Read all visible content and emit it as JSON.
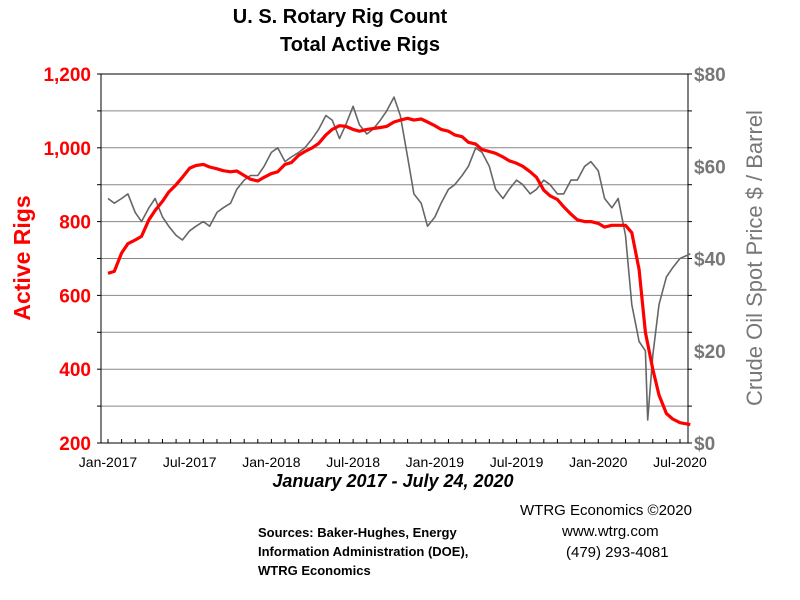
{
  "chart_data": {
    "type": "line",
    "title_line1": "U. S. Rotary Rig Count",
    "title_line2": "Total Active Rigs",
    "subtitle": "January 2017 - July 24, 2020",
    "ylabel_left": "Active Rigs",
    "ylabel_right": "Crude Oil Spot Price $ / Barrel",
    "ylim_left": [
      200,
      1200
    ],
    "ylim_right": [
      0,
      80
    ],
    "yticks_left": [
      "200",
      "400",
      "600",
      "800",
      "1,000",
      "1,200"
    ],
    "yticks_right": [
      "$0",
      "$20",
      "$40",
      "$60",
      "$80"
    ],
    "xticks": [
      "Jan-2017",
      "Jul-2017",
      "Jan-2018",
      "Jul-2018",
      "Jan-2019",
      "Jul-2019",
      "Jan-2020",
      "Jul-2020"
    ],
    "x_range": [
      "2017-01",
      "2020-07"
    ],
    "grid": true,
    "colors": {
      "rigs": "#ff0000",
      "oil": "#666666"
    },
    "series": [
      {
        "name": "Active Rigs",
        "axis": "left",
        "points": [
          [
            "2017-01",
            660
          ],
          [
            "2017-01-15",
            665
          ],
          [
            "2017-02",
            715
          ],
          [
            "2017-02-15",
            740
          ],
          [
            "2017-03",
            750
          ],
          [
            "2017-03-15",
            760
          ],
          [
            "2017-04",
            805
          ],
          [
            "2017-04-15",
            830
          ],
          [
            "2017-05",
            855
          ],
          [
            "2017-05-15",
            880
          ],
          [
            "2017-06",
            900
          ],
          [
            "2017-06-15",
            920
          ],
          [
            "2017-07",
            945
          ],
          [
            "2017-07-15",
            952
          ],
          [
            "2017-08",
            955
          ],
          [
            "2017-08-15",
            948
          ],
          [
            "2017-09",
            943
          ],
          [
            "2017-09-15",
            938
          ],
          [
            "2017-10",
            935
          ],
          [
            "2017-10-15",
            937
          ],
          [
            "2017-11",
            925
          ],
          [
            "2017-11-15",
            915
          ],
          [
            "2017-12",
            910
          ],
          [
            "2017-12-15",
            920
          ],
          [
            "2018-01",
            930
          ],
          [
            "2018-01-15",
            935
          ],
          [
            "2018-02",
            955
          ],
          [
            "2018-02-15",
            960
          ],
          [
            "2018-03",
            980
          ],
          [
            "2018-03-15",
            990
          ],
          [
            "2018-04",
            1000
          ],
          [
            "2018-04-15",
            1012
          ],
          [
            "2018-05",
            1035
          ],
          [
            "2018-05-15",
            1050
          ],
          [
            "2018-06",
            1060
          ],
          [
            "2018-06-15",
            1058
          ],
          [
            "2018-07",
            1050
          ],
          [
            "2018-07-15",
            1045
          ],
          [
            "2018-08",
            1050
          ],
          [
            "2018-08-15",
            1052
          ],
          [
            "2018-09",
            1055
          ],
          [
            "2018-09-15",
            1058
          ],
          [
            "2018-10",
            1070
          ],
          [
            "2018-10-15",
            1075
          ],
          [
            "2018-11",
            1080
          ],
          [
            "2018-11-15",
            1075
          ],
          [
            "2018-12",
            1078
          ],
          [
            "2018-12-15",
            1070
          ],
          [
            "2019-01",
            1060
          ],
          [
            "2019-01-15",
            1050
          ],
          [
            "2019-02",
            1045
          ],
          [
            "2019-02-15",
            1035
          ],
          [
            "2019-03",
            1030
          ],
          [
            "2019-03-15",
            1015
          ],
          [
            "2019-04",
            1010
          ],
          [
            "2019-04-15",
            995
          ],
          [
            "2019-05",
            990
          ],
          [
            "2019-05-15",
            985
          ],
          [
            "2019-06",
            975
          ],
          [
            "2019-06-15",
            965
          ],
          [
            "2019-07",
            958
          ],
          [
            "2019-07-15",
            950
          ],
          [
            "2019-08",
            935
          ],
          [
            "2019-08-15",
            920
          ],
          [
            "2019-09",
            885
          ],
          [
            "2019-09-15",
            870
          ],
          [
            "2019-10",
            860
          ],
          [
            "2019-10-15",
            840
          ],
          [
            "2019-11",
            820
          ],
          [
            "2019-11-15",
            805
          ],
          [
            "2019-12",
            800
          ],
          [
            "2019-12-15",
            800
          ],
          [
            "2020-01",
            795
          ],
          [
            "2020-01-15",
            785
          ],
          [
            "2020-02",
            790
          ],
          [
            "2020-02-15",
            790
          ],
          [
            "2020-03",
            790
          ],
          [
            "2020-03-15",
            770
          ],
          [
            "2020-04",
            670
          ],
          [
            "2020-04-15",
            500
          ],
          [
            "2020-05",
            400
          ],
          [
            "2020-05-15",
            330
          ],
          [
            "2020-06",
            280
          ],
          [
            "2020-06-15",
            265
          ],
          [
            "2020-07",
            255
          ],
          [
            "2020-07-24",
            250
          ]
        ]
      },
      {
        "name": "Crude Oil Spot Price",
        "axis": "right",
        "points": [
          [
            "2017-01",
            53
          ],
          [
            "2017-01-15",
            52
          ],
          [
            "2017-02",
            53
          ],
          [
            "2017-02-15",
            54
          ],
          [
            "2017-03",
            50
          ],
          [
            "2017-03-15",
            48
          ],
          [
            "2017-04",
            51
          ],
          [
            "2017-04-15",
            53
          ],
          [
            "2017-05",
            49
          ],
          [
            "2017-05-15",
            47
          ],
          [
            "2017-06",
            45
          ],
          [
            "2017-06-15",
            44
          ],
          [
            "2017-07",
            46
          ],
          [
            "2017-07-15",
            47
          ],
          [
            "2017-08",
            48
          ],
          [
            "2017-08-15",
            47
          ],
          [
            "2017-09",
            50
          ],
          [
            "2017-09-15",
            51
          ],
          [
            "2017-10",
            52
          ],
          [
            "2017-10-15",
            55
          ],
          [
            "2017-11",
            57
          ],
          [
            "2017-11-15",
            58
          ],
          [
            "2017-12",
            58
          ],
          [
            "2017-12-15",
            60
          ],
          [
            "2018-01",
            63
          ],
          [
            "2018-01-15",
            64
          ],
          [
            "2018-02",
            61
          ],
          [
            "2018-02-15",
            62
          ],
          [
            "2018-03",
            63
          ],
          [
            "2018-03-15",
            64
          ],
          [
            "2018-04",
            66
          ],
          [
            "2018-04-15",
            68
          ],
          [
            "2018-05",
            71
          ],
          [
            "2018-05-15",
            70
          ],
          [
            "2018-06",
            66
          ],
          [
            "2018-06-15",
            69
          ],
          [
            "2018-07",
            73
          ],
          [
            "2018-07-15",
            69
          ],
          [
            "2018-08",
            67
          ],
          [
            "2018-08-15",
            68
          ],
          [
            "2018-09",
            70
          ],
          [
            "2018-09-15",
            72
          ],
          [
            "2018-10",
            75
          ],
          [
            "2018-10-15",
            71
          ],
          [
            "2018-11",
            62
          ],
          [
            "2018-11-15",
            54
          ],
          [
            "2018-12",
            52
          ],
          [
            "2018-12-15",
            47
          ],
          [
            "2019-01",
            49
          ],
          [
            "2019-01-15",
            52
          ],
          [
            "2019-02",
            55
          ],
          [
            "2019-02-15",
            56
          ],
          [
            "2019-03",
            58
          ],
          [
            "2019-03-15",
            60
          ],
          [
            "2019-04",
            64
          ],
          [
            "2019-04-15",
            63
          ],
          [
            "2019-05",
            60
          ],
          [
            "2019-05-15",
            55
          ],
          [
            "2019-06",
            53
          ],
          [
            "2019-06-15",
            55
          ],
          [
            "2019-07",
            57
          ],
          [
            "2019-07-15",
            56
          ],
          [
            "2019-08",
            54
          ],
          [
            "2019-08-15",
            55
          ],
          [
            "2019-09",
            57
          ],
          [
            "2019-09-15",
            56
          ],
          [
            "2019-10",
            54
          ],
          [
            "2019-10-15",
            54
          ],
          [
            "2019-11",
            57
          ],
          [
            "2019-11-15",
            57
          ],
          [
            "2019-12",
            60
          ],
          [
            "2019-12-15",
            61
          ],
          [
            "2020-01",
            59
          ],
          [
            "2020-01-15",
            53
          ],
          [
            "2020-02",
            51
          ],
          [
            "2020-02-15",
            53
          ],
          [
            "2020-03",
            45
          ],
          [
            "2020-03-15",
            30
          ],
          [
            "2020-04",
            22
          ],
          [
            "2020-04-15",
            20
          ],
          [
            "2020-04-20",
            5
          ],
          [
            "2020-05",
            19
          ],
          [
            "2020-05-15",
            30
          ],
          [
            "2020-06",
            36
          ],
          [
            "2020-06-15",
            38
          ],
          [
            "2020-07",
            40
          ],
          [
            "2020-07-24",
            41
          ]
        ]
      }
    ]
  },
  "credit": {
    "line1": "WTRG Economics  ©2020",
    "line2": "www.wtrg.com",
    "line3": "(479) 293-4081"
  },
  "sources": {
    "line1": "Sources: Baker-Hughes, Energy",
    "line2": "Information Administration (DOE),",
    "line3": "WTRG Economics"
  }
}
